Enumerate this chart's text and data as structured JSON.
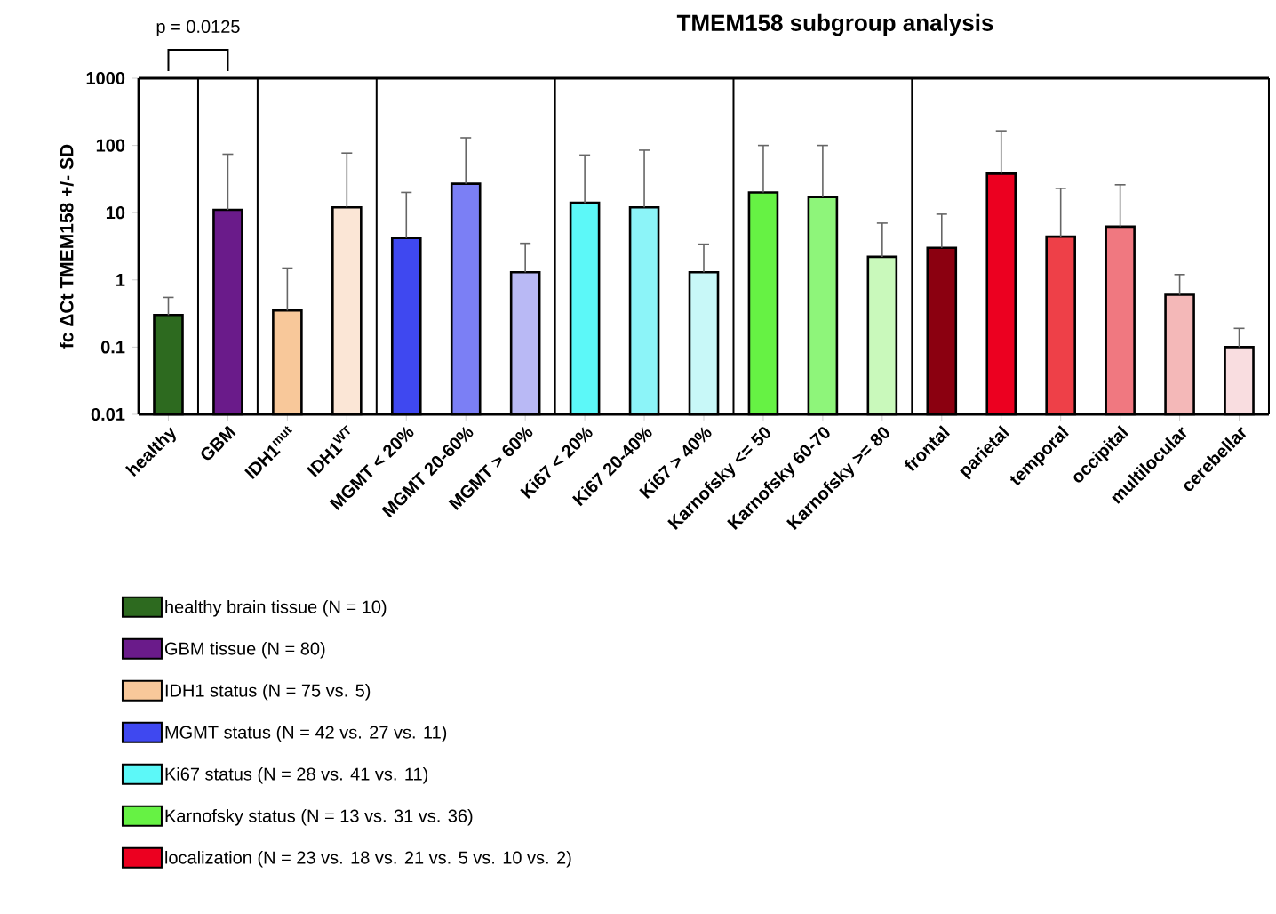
{
  "chart_data": {
    "type": "bar",
    "title": "TMEM158 subgroup analysis",
    "ylabel": "fc ΔCt TMEM158 +/- SD",
    "categories": [
      "healthy",
      "GBM",
      "IDH1$^{mut}$",
      "IDH1$^{WT}$",
      "MGMT < 20%",
      "MGMT 20-60%",
      "MGMT > 60%",
      "Ki67 < 20%",
      "Ki67 20-40%",
      "Ki67 > 40%",
      "Karnofsky <= 50",
      "Karnofsky 60-70",
      "Karnofsky >= 80",
      "frontal",
      "parietal",
      "temporal",
      "occipital",
      "multilocular",
      "cerebellar"
    ],
    "series": [
      {
        "name": "healthy brain tissue (N = 10)",
        "color": "#2d6a1f",
        "colors": [
          "#2d6a1f",
          null,
          null,
          null,
          null,
          null,
          null,
          null,
          null,
          null,
          null,
          null,
          null,
          null,
          null,
          null,
          null,
          null,
          null
        ],
        "values": [
          0.3,
          null,
          null,
          null,
          null,
          null,
          null,
          null,
          null,
          null,
          null,
          null,
          null,
          null,
          null,
          null,
          null,
          null,
          null
        ],
        "errors": [
          [
            0.3,
            0.55
          ],
          null,
          null,
          null,
          null,
          null,
          null,
          null,
          null,
          null,
          null,
          null,
          null,
          null,
          null,
          null,
          null,
          null,
          null
        ]
      },
      {
        "name": "GBM tissue (N = 80)",
        "color": "#6a1b8a",
        "colors": [
          null,
          "#6a1b8a",
          null,
          null,
          null,
          null,
          null,
          null,
          null,
          null,
          null,
          null,
          null,
          null,
          null,
          null,
          null,
          null,
          null
        ],
        "values": [
          null,
          11,
          null,
          null,
          null,
          null,
          null,
          null,
          null,
          null,
          null,
          null,
          null,
          null,
          null,
          null,
          null,
          null,
          null
        ],
        "errors": [
          null,
          [
            11,
            74
          ],
          null,
          null,
          null,
          null,
          null,
          null,
          null,
          null,
          null,
          null,
          null,
          null,
          null,
          null,
          null,
          null,
          null
        ]
      },
      {
        "name": "IDH1 status (N = 75 vs. 5)",
        "color": "#f8c89a",
        "colors": [
          null,
          null,
          "#f8c89a",
          "#fbe6d6",
          null,
          null,
          null,
          null,
          null,
          null,
          null,
          null,
          null,
          null,
          null,
          null,
          null,
          null,
          null
        ],
        "values": [
          null,
          null,
          0.35,
          12,
          null,
          null,
          null,
          null,
          null,
          null,
          null,
          null,
          null,
          null,
          null,
          null,
          null,
          null,
          null
        ],
        "errors": [
          null,
          null,
          [
            0.35,
            1.5
          ],
          [
            12,
            77
          ],
          null,
          null,
          null,
          null,
          null,
          null,
          null,
          null,
          null,
          null,
          null,
          null,
          null,
          null,
          null
        ]
      },
      {
        "name": "MGMT status (N = 42 vs. 27 vs. 11)",
        "color": "#3f48f0",
        "colors": [
          null,
          null,
          null,
          null,
          "#3f48f0",
          "#7b7ff5",
          "#b9b9f5",
          null,
          null,
          null,
          null,
          null,
          null,
          null,
          null,
          null,
          null,
          null,
          null
        ],
        "values": [
          null,
          null,
          null,
          null,
          4.2,
          27,
          1.3,
          null,
          null,
          null,
          null,
          null,
          null,
          null,
          null,
          null,
          null,
          null,
          null
        ],
        "errors": [
          null,
          null,
          null,
          null,
          [
            4.2,
            20
          ],
          [
            27,
            130
          ],
          [
            1.3,
            3.5
          ],
          null,
          null,
          null,
          null,
          null,
          null,
          null,
          null,
          null,
          null,
          null,
          null
        ]
      },
      {
        "name": "Ki67 status (N = 28 vs. 41 vs. 11)",
        "color": "#5cf8f8",
        "colors": [
          null,
          null,
          null,
          null,
          null,
          null,
          null,
          "#5cf8f8",
          "#8cf4f8",
          "#c8f8f8",
          null,
          null,
          null,
          null,
          null,
          null,
          null,
          null,
          null
        ],
        "values": [
          null,
          null,
          null,
          null,
          null,
          null,
          null,
          14,
          12,
          1.3,
          null,
          null,
          null,
          null,
          null,
          null,
          null,
          null,
          null
        ],
        "errors": [
          null,
          null,
          null,
          null,
          null,
          null,
          null,
          [
            14,
            72
          ],
          [
            12,
            85
          ],
          [
            1.3,
            3.4
          ],
          null,
          null,
          null,
          null,
          null,
          null,
          null,
          null,
          null
        ]
      },
      {
        "name": "Karnofsky status (N = 13 vs. 31 vs. 36)",
        "color": "#66f244",
        "colors": [
          null,
          null,
          null,
          null,
          null,
          null,
          null,
          null,
          null,
          null,
          "#66f244",
          "#8ef57a",
          "#c9f9bb",
          null,
          null,
          null,
          null,
          null,
          null
        ],
        "values": [
          null,
          null,
          null,
          null,
          null,
          null,
          null,
          null,
          null,
          null,
          20,
          17,
          2.2,
          null,
          null,
          null,
          null,
          null,
          null
        ],
        "errors": [
          null,
          null,
          null,
          null,
          null,
          null,
          null,
          null,
          null,
          null,
          [
            20,
            100
          ],
          [
            17,
            100
          ],
          [
            2.2,
            7
          ],
          null,
          null,
          null,
          null,
          null,
          null
        ]
      },
      {
        "name": "localization (N = 23 vs. 18 vs. 21 vs. 5 vs. 10 vs. 2)",
        "color": "#ec0020",
        "colors": [
          null,
          null,
          null,
          null,
          null,
          null,
          null,
          null,
          null,
          null,
          null,
          null,
          null,
          "#8b0010",
          "#ec0020",
          "#ee4048",
          "#f07880",
          "#f4b8b8",
          "#f9dde0"
        ],
        "values": [
          null,
          null,
          null,
          null,
          null,
          null,
          null,
          null,
          null,
          null,
          null,
          null,
          null,
          3.0,
          38,
          4.4,
          6.2,
          0.6,
          0.1
        ],
        "errors": [
          null,
          null,
          null,
          null,
          null,
          null,
          null,
          null,
          null,
          null,
          null,
          null,
          null,
          [
            3.0,
            9.5
          ],
          [
            38,
            165
          ],
          [
            4.4,
            23
          ],
          [
            6.2,
            26
          ],
          [
            0.6,
            1.2
          ],
          [
            0.1,
            0.19
          ]
        ]
      }
    ],
    "ylim": [
      0.01,
      1000
    ],
    "yticks": [
      0.01,
      0.1,
      1,
      10,
      100,
      1000
    ],
    "log": true,
    "legend": "bottom",
    "annotations": [
      "p = 0.0125"
    ]
  }
}
